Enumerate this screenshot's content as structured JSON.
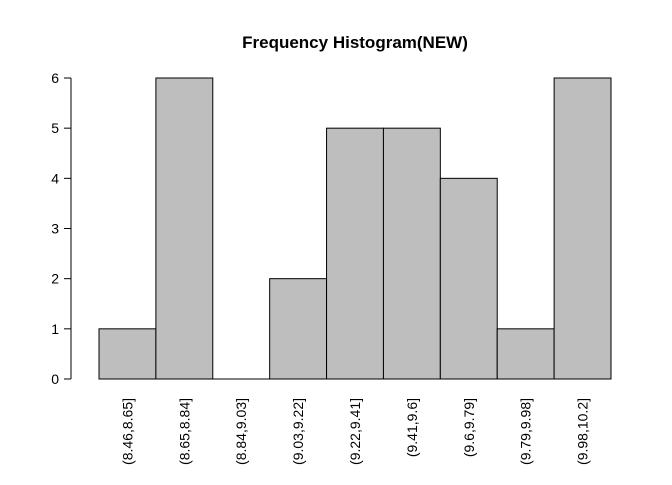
{
  "chart_data": {
    "type": "bar",
    "title": "Frequency Histogram(NEW)",
    "xlabel": "",
    "ylabel": "",
    "categories": [
      "(8.46,8.65]",
      "(8.65,8.84]",
      "(8.84,9.03]",
      "(9.03,9.22]",
      "(9.22,9.41]",
      "(9.41,9.6]",
      "(9.6,9.79]",
      "(9.79,9.98]",
      "(9.98,10.2]"
    ],
    "values": [
      1,
      6,
      0,
      2,
      5,
      5,
      4,
      1,
      6
    ],
    "ylim": [
      0,
      6
    ],
    "yticks": [
      "0",
      "1",
      "2",
      "3",
      "4",
      "5",
      "6"
    ],
    "grid": false,
    "legend": "none",
    "colors": {
      "bar_fill": "#bebebe",
      "bar_stroke": "#000000",
      "axis": "#000000",
      "background": "#ffffff"
    }
  }
}
